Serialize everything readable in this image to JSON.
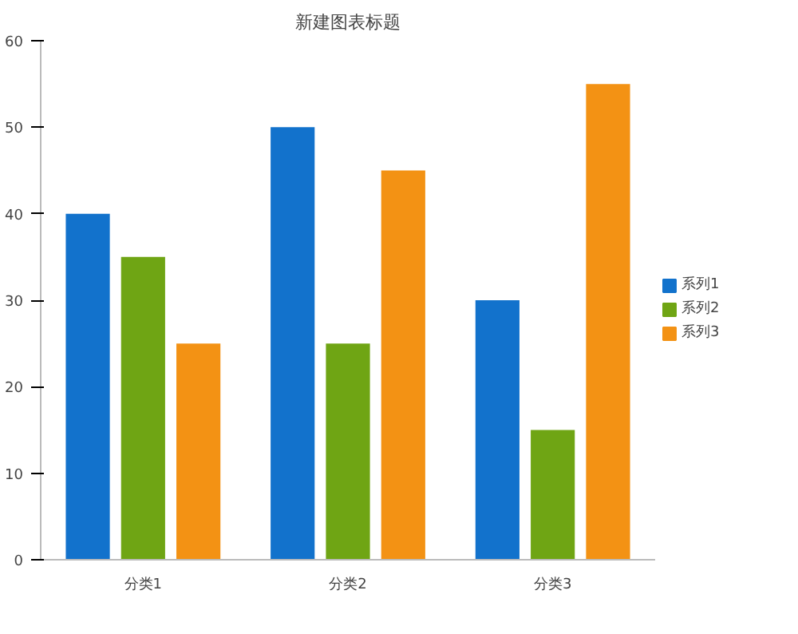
{
  "chart_data": {
    "type": "bar",
    "title": "新建图表标题",
    "categories": [
      "分类1",
      "分类2",
      "分类3"
    ],
    "series": [
      {
        "name": "系列1",
        "color": "#1272cc",
        "values": [
          40,
          50,
          30
        ]
      },
      {
        "name": "系列2",
        "color": "#6fa514",
        "values": [
          35,
          25,
          15
        ]
      },
      {
        "name": "系列3",
        "color": "#f39214",
        "values": [
          25,
          45,
          55
        ]
      }
    ],
    "ylim": [
      0,
      60
    ],
    "yticks": [
      0,
      10,
      20,
      30,
      40,
      50,
      60
    ],
    "grid": false,
    "legend": "right"
  }
}
